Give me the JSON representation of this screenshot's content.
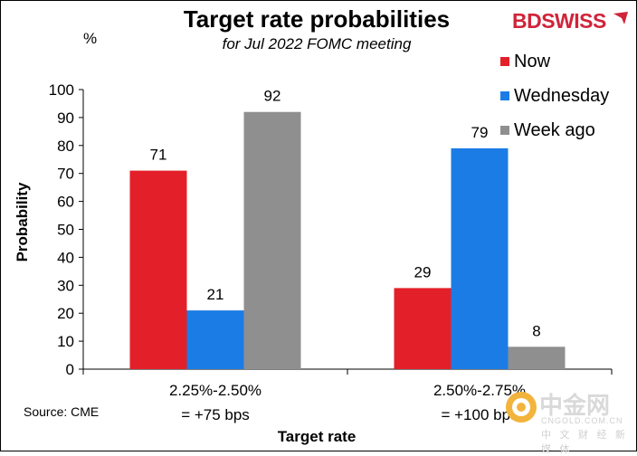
{
  "header": {
    "title": "Target rate probabilities",
    "subtitle": "for Jul 2022 FOMC meeting",
    "unit": "%",
    "logo": "BDSWISS"
  },
  "footer": {
    "source": "Source: CME"
  },
  "watermark": {
    "name": "中金网",
    "site": "CNGOLD.COM.CN",
    "tagline": "中 文 财 经 新 媒 体"
  },
  "colors": {
    "now": "#e3202a",
    "wednesday": "#1c7ce6",
    "week_ago": "#8f8f8f",
    "logo": "#d0243a"
  },
  "chart_data": {
    "type": "bar",
    "title": "Target rate probabilities",
    "subtitle": "for Jul 2022 FOMC meeting",
    "xlabel": "Target rate",
    "ylabel": "Probability",
    "ylim": [
      0,
      100
    ],
    "yticks": [
      0,
      10,
      20,
      30,
      40,
      50,
      60,
      70,
      80,
      90,
      100
    ],
    "grid": false,
    "legend_position": "top-right",
    "categories": [
      [
        "2.25%-2.50%",
        "= +75 bps"
      ],
      [
        "2.50%-2.75%",
        "= +100 bps"
      ]
    ],
    "series": [
      {
        "name": "Now",
        "color": "#e3202a",
        "values": [
          71,
          29
        ]
      },
      {
        "name": "Wednesday",
        "color": "#1c7ce6",
        "values": [
          21,
          79
        ]
      },
      {
        "name": "Week ago",
        "color": "#8f8f8f",
        "values": [
          92,
          8
        ]
      }
    ]
  }
}
